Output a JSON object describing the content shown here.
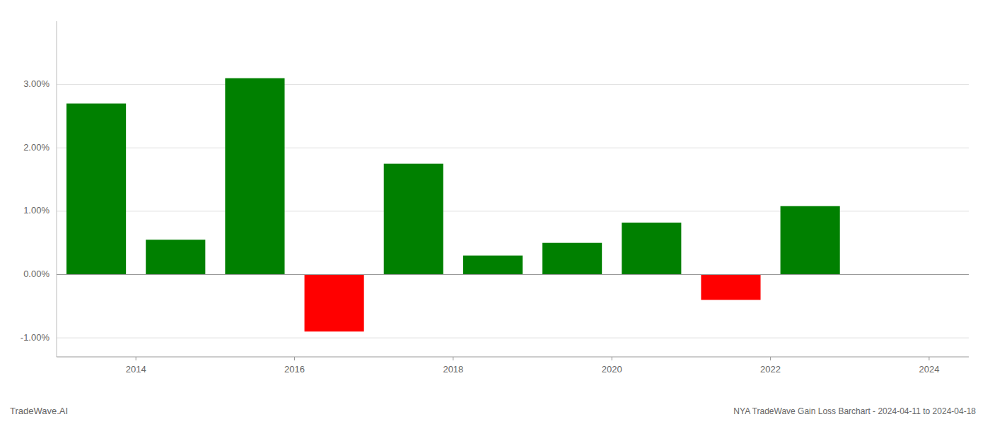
{
  "chart_data": {
    "type": "bar",
    "title": "NYA TradeWave Gain Loss Barchart - 2024-04-11 to 2024-04-18",
    "annotations": [
      "TradeWave.AI"
    ],
    "x": [
      2013.5,
      2014.5,
      2015.5,
      2016.5,
      2017.5,
      2018.5,
      2019.5,
      2020.5,
      2021.5,
      2022.5
    ],
    "values": [
      0.027,
      0.0055,
      0.031,
      -0.009,
      0.0175,
      0.003,
      0.005,
      0.0082,
      -0.004,
      0.0108
    ],
    "colors": [
      "#008000",
      "#008000",
      "#008000",
      "#ff0000",
      "#008000",
      "#008000",
      "#008000",
      "#008000",
      "#ff0000",
      "#008000"
    ],
    "xlim": [
      2013.0,
      2024.5
    ],
    "xticks": [
      2014,
      2016,
      2018,
      2020,
      2022,
      2024
    ],
    "ylim": [
      -0.013,
      0.04
    ],
    "yticks": [
      {
        "value": -0.01,
        "label": "-1.00%"
      },
      {
        "value": 0.0,
        "label": "0.00%"
      },
      {
        "value": 0.01,
        "label": "1.00%"
      },
      {
        "value": 0.02,
        "label": "2.00%"
      },
      {
        "value": 0.03,
        "label": "3.00%"
      }
    ],
    "grid": true
  }
}
